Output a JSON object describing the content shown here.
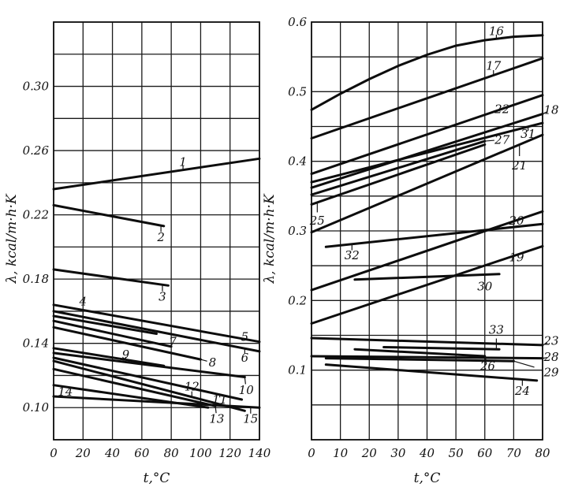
{
  "chart_data": [
    {
      "type": "line",
      "xlabel": "t,°C",
      "ylabel": "λ, kcal/m·h·K",
      "xlim": [
        0,
        140
      ],
      "ylim": [
        0.08,
        0.34
      ],
      "x_ticks": [
        "0",
        "20",
        "40",
        "60",
        "80",
        "100",
        "120",
        "140"
      ],
      "y_ticks": [
        {
          "value": 0.1,
          "label": "0.10"
        },
        {
          "value": 0.14,
          "label": "0.14"
        },
        {
          "value": 0.18,
          "label": "0.18"
        },
        {
          "value": 0.22,
          "label": "0.22"
        },
        {
          "value": 0.26,
          "label": "0.26"
        },
        {
          "value": 0.3,
          "label": "0.30"
        }
      ],
      "grid": true,
      "series": [
        {
          "name": "1",
          "points": [
            [
              0,
              0.236
            ],
            [
              140,
              0.255
            ]
          ]
        },
        {
          "name": "2",
          "points": [
            [
              0,
              0.226
            ],
            [
              75,
              0.213
            ]
          ]
        },
        {
          "name": "3",
          "points": [
            [
              0,
              0.186
            ],
            [
              78,
              0.176
            ]
          ]
        },
        {
          "name": "4",
          "points": [
            [
              0,
              0.157
            ],
            [
              70,
              0.146
            ]
          ]
        },
        {
          "name": "5",
          "points": [
            [
              0,
              0.164
            ],
            [
              140,
              0.141
            ]
          ]
        },
        {
          "name": "6",
          "points": [
            [
              0,
              0.16
            ],
            [
              140,
              0.135
            ]
          ]
        },
        {
          "name": "7",
          "points": [
            [
              0,
              0.154
            ],
            [
              80,
              0.138
            ]
          ]
        },
        {
          "name": "8",
          "points": [
            [
              0,
              0.15
            ],
            [
              100,
              0.13
            ]
          ]
        },
        {
          "name": "9",
          "points": [
            [
              0,
              0.137
            ],
            [
              75,
              0.126
            ]
          ]
        },
        {
          "name": "10",
          "points": [
            [
              0,
              0.134
            ],
            [
              130,
              0.119
            ]
          ]
        },
        {
          "name": "11",
          "points": [
            [
              0,
              0.131
            ],
            [
              128,
              0.105
            ]
          ]
        },
        {
          "name": "12",
          "points": [
            [
              0,
              0.129
            ],
            [
              130,
              0.098
            ]
          ]
        },
        {
          "name": "13",
          "points": [
            [
              0,
              0.124
            ],
            [
              110,
              0.101
            ]
          ]
        },
        {
          "name": "14",
          "points": [
            [
              0,
              0.114
            ],
            [
              105,
              0.1
            ]
          ]
        },
        {
          "name": "15",
          "points": [
            [
              0,
              0.107
            ],
            [
              140,
              0.1
            ]
          ]
        }
      ],
      "labels": [
        {
          "text": "1",
          "x": 88,
          "y": 0.253
        },
        {
          "text": "2",
          "x": 73,
          "y": 0.206
        },
        {
          "text": "3",
          "x": 74,
          "y": 0.169
        },
        {
          "text": "4",
          "x": 20,
          "y": 0.166
        },
        {
          "text": "5",
          "x": 130,
          "y": 0.144
        },
        {
          "text": "6",
          "x": 130,
          "y": 0.131
        },
        {
          "text": "7",
          "x": 81,
          "y": 0.141
        },
        {
          "text": "8",
          "x": 108,
          "y": 0.128
        },
        {
          "text": "9",
          "x": 49,
          "y": 0.133
        },
        {
          "text": "10",
          "x": 131,
          "y": 0.111
        },
        {
          "text": "11",
          "x": 113,
          "y": 0.105
        },
        {
          "text": "12",
          "x": 94,
          "y": 0.113
        },
        {
          "text": "13",
          "x": 111,
          "y": 0.093
        },
        {
          "text": "14",
          "x": 8,
          "y": 0.11
        },
        {
          "text": "15",
          "x": 134,
          "y": 0.093
        }
      ]
    },
    {
      "type": "line",
      "xlabel": "t,°C",
      "ylabel": "λ, kcal/m·h·K",
      "xlim": [
        0,
        80
      ],
      "ylim": [
        0,
        0.6
      ],
      "x_ticks": [
        "0",
        "10",
        "20",
        "30",
        "40",
        "50",
        "60",
        "70",
        "80"
      ],
      "y_ticks": [
        {
          "value": 0.1,
          "label": "0.1"
        },
        {
          "value": 0.2,
          "label": "0.2"
        },
        {
          "value": 0.3,
          "label": "0.3"
        },
        {
          "value": 0.4,
          "label": "0.4"
        },
        {
          "value": 0.5,
          "label": "0.5"
        },
        {
          "value": 0.6,
          "label": "0.6"
        }
      ],
      "grid": true,
      "series": [
        {
          "name": "16",
          "points": [
            [
              0,
              0.474
            ],
            [
              10,
              0.497
            ],
            [
              20,
              0.518
            ],
            [
              30,
              0.537
            ],
            [
              40,
              0.553
            ],
            [
              50,
              0.566
            ],
            [
              60,
              0.574
            ],
            [
              70,
              0.579
            ],
            [
              80,
              0.581
            ]
          ]
        },
        {
          "name": "17",
          "points": [
            [
              0,
              0.433
            ],
            [
              80,
              0.548
            ]
          ]
        },
        {
          "name": "18",
          "points": [
            [
              0,
              0.362
            ],
            [
              80,
              0.468
            ]
          ]
        },
        {
          "name": "19",
          "points": [
            [
              0,
              0.167
            ],
            [
              80,
              0.278
            ]
          ]
        },
        {
          "name": "20",
          "points": [
            [
              0,
              0.215
            ],
            [
              80,
              0.328
            ]
          ]
        },
        {
          "name": "21",
          "points": [
            [
              0,
              0.298
            ],
            [
              80,
              0.438
            ]
          ]
        },
        {
          "name": "22",
          "points": [
            [
              0,
              0.382
            ],
            [
              80,
              0.495
            ]
          ]
        },
        {
          "name": "23",
          "points": [
            [
              0,
              0.146
            ],
            [
              80,
              0.136
            ]
          ]
        },
        {
          "name": "24",
          "points": [
            [
              5,
              0.108
            ],
            [
              78,
              0.085
            ]
          ]
        },
        {
          "name": "25",
          "points": [
            [
              0,
              0.338
            ],
            [
              60,
              0.424
            ]
          ]
        },
        {
          "name": "26",
          "points": [
            [
              15,
              0.13
            ],
            [
              60,
              0.12
            ]
          ]
        },
        {
          "name": "27",
          "points": [
            [
              0,
              0.352
            ],
            [
              60,
              0.429
            ]
          ]
        },
        {
          "name": "28",
          "points": [
            [
              0,
              0.12
            ],
            [
              80,
              0.117
            ]
          ]
        },
        {
          "name": "29",
          "points": [
            [
              5,
              0.117
            ],
            [
              70,
              0.113
            ]
          ]
        },
        {
          "name": "30",
          "points": [
            [
              15,
              0.23
            ],
            [
              65,
              0.238
            ]
          ]
        },
        {
          "name": "31",
          "points": [
            [
              0,
              0.37
            ],
            [
              80,
              0.455
            ]
          ]
        },
        {
          "name": "32",
          "points": [
            [
              5,
              0.277
            ],
            [
              80,
              0.31
            ]
          ]
        },
        {
          "name": "33",
          "points": [
            [
              25,
              0.133
            ],
            [
              65,
              0.13
            ]
          ]
        }
      ],
      "labels": [
        {
          "text": "16",
          "x": 64,
          "y": 0.587
        },
        {
          "text": "17",
          "x": 63,
          "y": 0.537
        },
        {
          "text": "18",
          "x": 83,
          "y": 0.474
        },
        {
          "text": "19",
          "x": 71,
          "y": 0.262
        },
        {
          "text": "20",
          "x": 71,
          "y": 0.315
        },
        {
          "text": "21",
          "x": 72,
          "y": 0.394
        },
        {
          "text": "22",
          "x": 66,
          "y": 0.475
        },
        {
          "text": "23",
          "x": 83,
          "y": 0.142
        },
        {
          "text": "24",
          "x": 73,
          "y": 0.07
        },
        {
          "text": "25",
          "x": 2,
          "y": 0.315
        },
        {
          "text": "26",
          "x": 61,
          "y": 0.106
        },
        {
          "text": "27",
          "x": 66,
          "y": 0.431
        },
        {
          "text": "28",
          "x": 83,
          "y": 0.119
        },
        {
          "text": "29",
          "x": 83,
          "y": 0.097
        },
        {
          "text": "30",
          "x": 60,
          "y": 0.22
        },
        {
          "text": "31",
          "x": 75,
          "y": 0.439
        },
        {
          "text": "32",
          "x": 14,
          "y": 0.265
        },
        {
          "text": "33",
          "x": 64,
          "y": 0.158
        }
      ]
    }
  ]
}
